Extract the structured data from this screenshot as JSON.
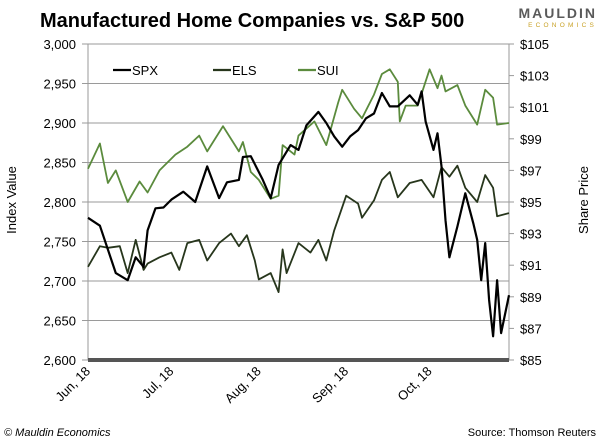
{
  "chart_data": {
    "type": "line",
    "title": "Manufactured Home Companies vs. S&P 500",
    "ylabel": "Index Value",
    "y2label": "Share Price",
    "ylim": [
      2600,
      3000
    ],
    "y2lim": [
      85,
      105
    ],
    "yticks": [
      "2,600",
      "2,650",
      "2,700",
      "2,750",
      "2,800",
      "2,850",
      "2,900",
      "2,950",
      "3,000"
    ],
    "y2ticks": [
      "$85",
      "$87",
      "$89",
      "$91",
      "$93",
      "$95",
      "$97",
      "$99",
      "$101",
      "$103",
      "$105"
    ],
    "x_unit": "trading day index from Jun 1, 2018",
    "xlim": [
      0,
      106
    ],
    "xticks": [
      {
        "label": "Jun, 18",
        "day": 0
      },
      {
        "label": "Jul, 18",
        "day": 21
      },
      {
        "label": "Aug, 18",
        "day": 43
      },
      {
        "label": "Sep, 18",
        "day": 65
      },
      {
        "label": "Oct, 18",
        "day": 86
      }
    ],
    "grid": true,
    "legend_position": "top-left",
    "series": [
      {
        "name": "SPX",
        "axis": "left",
        "color": "#000000",
        "x": [
          0,
          3,
          7,
          10,
          12,
          14,
          15,
          17,
          19,
          21,
          24,
          27,
          30,
          33,
          35,
          38,
          39,
          41,
          43,
          44,
          46,
          48,
          51,
          53,
          55,
          58,
          60,
          62,
          64,
          66,
          68,
          70,
          72,
          74,
          76,
          78,
          81,
          83,
          84,
          85,
          87,
          88,
          89,
          90,
          91,
          93,
          95,
          97,
          98,
          99,
          100,
          101,
          102,
          103,
          104,
          106
        ],
        "values": [
          2780,
          2770,
          2710,
          2701,
          2730,
          2718,
          2764,
          2792,
          2793,
          2803,
          2813,
          2800,
          2845,
          2805,
          2825,
          2828,
          2857,
          2858,
          2838,
          2828,
          2805,
          2847,
          2872,
          2866,
          2897,
          2914,
          2900,
          2883,
          2870,
          2883,
          2891,
          2906,
          2912,
          2938,
          2921,
          2921,
          2935,
          2923,
          2940,
          2902,
          2866,
          2887,
          2845,
          2777,
          2730,
          2769,
          2811,
          2773,
          2752,
          2701,
          2748,
          2676,
          2630,
          2701,
          2634,
          2682
        ]
      },
      {
        "name": "ELS",
        "axis": "right",
        "color": "#27361c",
        "x": [
          0,
          3,
          5,
          8,
          10,
          12,
          14,
          15,
          18,
          21,
          23,
          25,
          28,
          30,
          33,
          36,
          38,
          40,
          42,
          43,
          46,
          48,
          49,
          50,
          53,
          56,
          58,
          60,
          62,
          65,
          68,
          69,
          72,
          74,
          76,
          78,
          81,
          84,
          87,
          89,
          91,
          93,
          95,
          98,
          100,
          102,
          103,
          106
        ],
        "values": [
          90.9,
          92.2,
          92.1,
          92.2,
          90.5,
          92.6,
          90.7,
          91.1,
          91.5,
          91.8,
          90.7,
          92.4,
          92.6,
          91.3,
          92.4,
          93.0,
          92.2,
          92.9,
          91.3,
          90.1,
          90.5,
          89.3,
          92.0,
          90.5,
          92.4,
          91.8,
          92.6,
          91.3,
          93.2,
          95.4,
          94.9,
          94.0,
          95.1,
          96.4,
          96.9,
          95.3,
          96.2,
          96.4,
          95.3,
          97.2,
          96.6,
          97.3,
          95.9,
          95.0,
          96.7,
          95.9,
          94.1,
          94.3
        ]
      },
      {
        "name": "SUI",
        "axis": "right",
        "color": "#5b8b3d",
        "x": [
          0,
          3,
          5,
          7,
          10,
          13,
          15,
          18,
          22,
          25,
          28,
          30,
          34,
          38,
          39,
          41,
          43,
          46,
          48,
          49,
          52,
          53,
          57,
          60,
          63,
          64,
          67,
          69,
          72,
          74,
          76,
          78,
          78.5,
          80,
          83,
          86,
          88,
          89,
          90,
          93,
          95,
          98,
          100,
          102,
          103,
          106
        ],
        "values": [
          97.1,
          98.7,
          96.2,
          97.0,
          95.0,
          96.3,
          95.6,
          97.0,
          98.0,
          98.5,
          99.2,
          98.2,
          99.8,
          98.2,
          98.8,
          96.9,
          96.4,
          95.2,
          95.4,
          98.6,
          98.0,
          99.2,
          100.1,
          98.6,
          101.3,
          102.1,
          100.9,
          100.3,
          101.8,
          103.1,
          103.4,
          102.6,
          100.1,
          101.1,
          101.1,
          103.4,
          102.2,
          103.0,
          102.0,
          102.4,
          101.1,
          99.9,
          102.1,
          101.6,
          99.9,
          100.0
        ]
      }
    ]
  },
  "logo": {
    "line1": "MAULDIN",
    "line2": "ECONOMICS",
    "gray": "#5a5a5a",
    "gold": "#c9a227"
  },
  "footer": {
    "left": "© Mauldin Economics",
    "right": "Source: Thomson Reuters"
  }
}
